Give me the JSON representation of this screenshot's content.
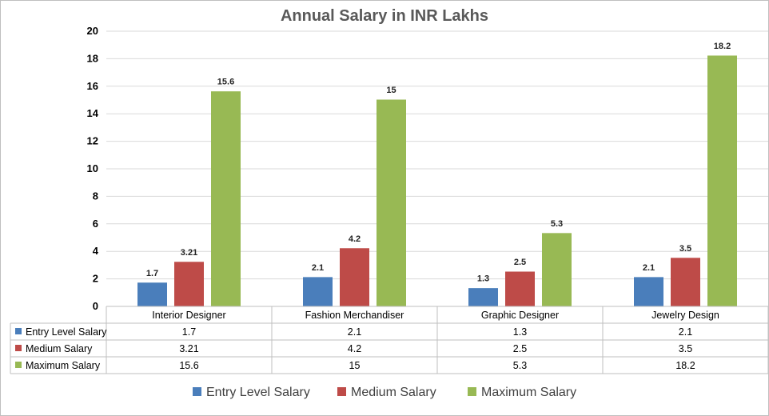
{
  "chart_data": {
    "type": "bar",
    "title": "Annual Salary in INR Lakhs",
    "categories": [
      "Interior Designer",
      "Fashion Merchandiser",
      "Graphic Designer",
      "Jewelry Design"
    ],
    "series": [
      {
        "name": "Entry Level Salary",
        "color": "#4a7ebb",
        "values": [
          1.7,
          2.1,
          1.3,
          2.1
        ],
        "labels": [
          "1.7",
          "2.1",
          "1.3",
          "2.1"
        ]
      },
      {
        "name": "Medium Salary",
        "color": "#be4b48",
        "values": [
          3.21,
          4.2,
          2.5,
          3.5
        ],
        "labels": [
          "3.21",
          "4.2",
          "2.5",
          "3.5"
        ]
      },
      {
        "name": "Maximum Salary",
        "color": "#98b954",
        "values": [
          15.6,
          15,
          5.3,
          18.2
        ],
        "labels": [
          "15.6",
          "15",
          "5.3",
          "18.2"
        ]
      }
    ],
    "ylim": [
      0,
      20
    ],
    "yticks": [
      "0",
      "2",
      "4",
      "6",
      "8",
      "10",
      "12",
      "14",
      "16",
      "18",
      "20"
    ],
    "xlabel": "",
    "ylabel": "",
    "grid": true,
    "legend": "bottom",
    "data_table": true
  }
}
